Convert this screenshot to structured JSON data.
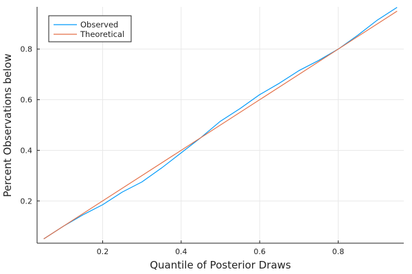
{
  "chart_data": {
    "type": "line",
    "xlabel": "Quantile of Posterior Draws",
    "ylabel": "Percent Observations below",
    "xlim": [
      0.033,
      0.967
    ],
    "ylim": [
      0.033,
      0.967
    ],
    "xticks": [
      0.2,
      0.4,
      0.6,
      0.8
    ],
    "yticks": [
      0.2,
      0.4,
      0.6,
      0.8
    ],
    "xtick_labels": [
      "0.2",
      "0.4",
      "0.6",
      "0.8"
    ],
    "ytick_labels": [
      "0.2",
      "0.4",
      "0.6",
      "0.8"
    ],
    "grid": true,
    "legend_position": "top-left",
    "series": [
      {
        "name": "Observed",
        "color": "#009AFA",
        "x": [
          0.05,
          0.1,
          0.15,
          0.2,
          0.25,
          0.3,
          0.35,
          0.4,
          0.45,
          0.5,
          0.55,
          0.6,
          0.65,
          0.7,
          0.75,
          0.8,
          0.85,
          0.9,
          0.95
        ],
        "y": [
          0.05,
          0.1,
          0.145,
          0.185,
          0.235,
          0.275,
          0.33,
          0.39,
          0.45,
          0.515,
          0.565,
          0.62,
          0.665,
          0.715,
          0.755,
          0.8,
          0.855,
          0.915,
          0.965
        ]
      },
      {
        "name": "Theoretical",
        "color": "#E36F47",
        "x": [
          0.05,
          0.95
        ],
        "y": [
          0.05,
          0.95
        ]
      }
    ]
  }
}
